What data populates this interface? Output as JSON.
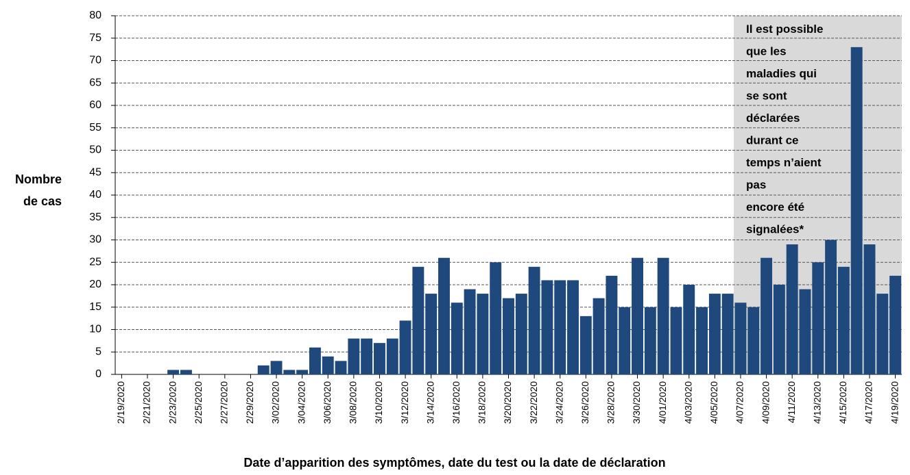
{
  "chart_data": {
    "type": "bar",
    "y_label": [
      "Nombre",
      "de cas"
    ],
    "x_label": "Date d’apparition des symptômes, date du test ou la date de déclaration",
    "annotation": [
      "Il est possible",
      "que les",
      "maladies qui",
      "se sont",
      "déclarées",
      "durant ce",
      "temps n’aient",
      "pas",
      "encore été",
      "signalées*"
    ],
    "color": "#1f497d",
    "categories": [
      "2/19/2020",
      null,
      "2/21/2020",
      null,
      "2/23/2020",
      null,
      "2/25/2020",
      null,
      "2/27/2020",
      null,
      "2/29/2020",
      null,
      "3/02/2020",
      null,
      "3/04/2020",
      null,
      "3/06/2020",
      null,
      "3/08/2020",
      null,
      "3/10/2020",
      null,
      "3/12/2020",
      null,
      "3/14/2020",
      null,
      "3/16/2020",
      null,
      "3/18/2020",
      null,
      "3/20/2020",
      null,
      "3/22/2020",
      null,
      "3/24/2020",
      null,
      "3/26/2020",
      null,
      "3/28/2020",
      null,
      "3/30/2020",
      null,
      "4/01/2020",
      null,
      "4/03/2020",
      null,
      "4/05/2020",
      null,
      "4/07/2020",
      null,
      "4/09/2020",
      null,
      "4/11/2020",
      null,
      "4/13/2020",
      null,
      "4/15/2020",
      null,
      "4/17/2020",
      null,
      "4/19/2020"
    ],
    "values": [
      0,
      0,
      0,
      0,
      1,
      1,
      0,
      0,
      0,
      0,
      0,
      2,
      3,
      1,
      1,
      6,
      4,
      3,
      8,
      8,
      7,
      8,
      12,
      24,
      18,
      26,
      16,
      19,
      18,
      25,
      17,
      18,
      24,
      21,
      21,
      21,
      13,
      17,
      22,
      15,
      26,
      15,
      26,
      15,
      20,
      15,
      18,
      18,
      16,
      15,
      26,
      20,
      29,
      19,
      25,
      30,
      24,
      73,
      29,
      18,
      22
    ],
    "ylim": [
      0,
      80
    ],
    "yticks": [
      0,
      5,
      10,
      15,
      20,
      25,
      30,
      35,
      40,
      45,
      50,
      55,
      60,
      65,
      70,
      75,
      80
    ],
    "grid": true
  }
}
